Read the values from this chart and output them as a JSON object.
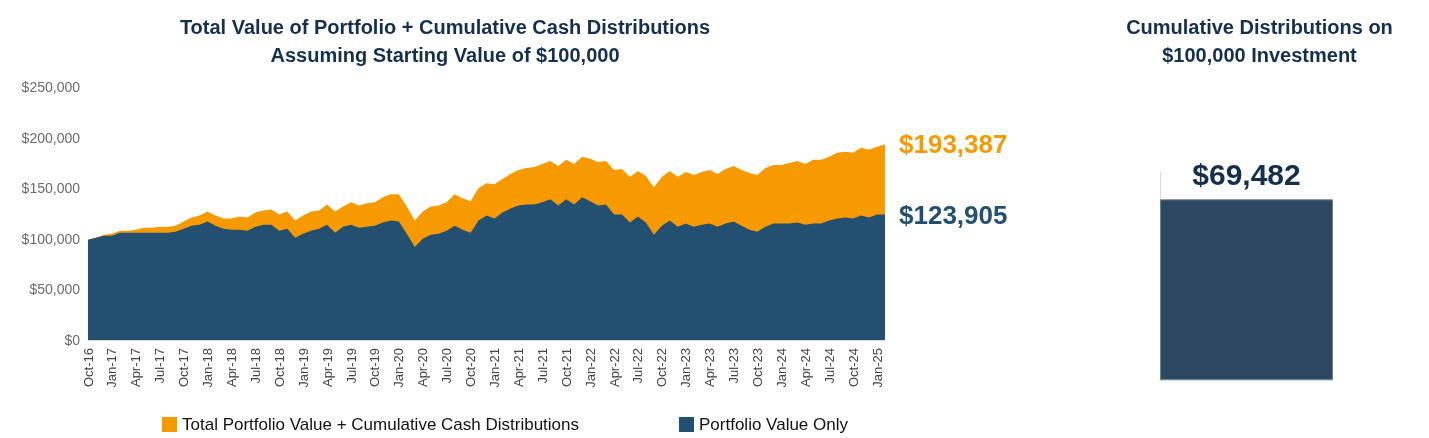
{
  "chart_data": [
    {
      "type": "area",
      "title": "Total Value of Portfolio + Cumulative Cash Distributions\nAssuming Starting Value of $100,000",
      "categories": [
        "Oct-16",
        null,
        null,
        "Jan-17",
        null,
        null,
        "Apr-17",
        null,
        null,
        "Jul-17",
        null,
        null,
        "Oct-17",
        null,
        null,
        "Jan-18",
        null,
        null,
        "Apr-18",
        null,
        null,
        "Jul-18",
        null,
        null,
        "Oct-18",
        null,
        null,
        "Jan-19",
        null,
        null,
        "Apr-19",
        null,
        null,
        "Jul-19",
        null,
        null,
        "Oct-19",
        null,
        null,
        "Jan-20",
        null,
        null,
        "Apr-20",
        null,
        null,
        "Jul-20",
        null,
        null,
        "Oct-20",
        null,
        null,
        "Jan-21",
        null,
        null,
        "Apr-21",
        null,
        null,
        "Jul-21",
        null,
        null,
        "Oct-21",
        null,
        null,
        "Jan-22",
        null,
        null,
        "Apr-22",
        null,
        null,
        "Jul-22",
        null,
        null,
        "Oct-22",
        null,
        null,
        "Jan-23",
        null,
        null,
        "Apr-23",
        null,
        null,
        "Jul-23",
        null,
        null,
        "Oct-23",
        null,
        null,
        "Jan-24",
        null,
        null,
        "Apr-24",
        null,
        null,
        "Jul-24",
        null,
        null,
        "Oct-24",
        null,
        null,
        "Jan-25",
        null
      ],
      "series": [
        {
          "name": "Total Portfolio Value + Cumulative Cash Distributions",
          "color": "#f79a00",
          "values": [
            99000,
            101000,
            104000,
            105000,
            108000,
            108000,
            109000,
            111000,
            111000,
            112000,
            112000,
            113000,
            117000,
            121000,
            123000,
            127000,
            123000,
            120000,
            120000,
            122000,
            121000,
            126000,
            128000,
            129000,
            124000,
            127000,
            118000,
            123000,
            127000,
            128000,
            134000,
            127000,
            132000,
            136000,
            133000,
            135000,
            136000,
            141000,
            144000,
            144000,
            132000,
            118000,
            127000,
            132000,
            133000,
            136000,
            144000,
            140000,
            137000,
            150000,
            155000,
            154000,
            159000,
            164000,
            168000,
            170000,
            171000,
            174000,
            177000,
            172000,
            178000,
            174000,
            181000,
            179000,
            176000,
            177000,
            168000,
            169000,
            161000,
            167000,
            162000,
            151000,
            161000,
            167000,
            161000,
            166000,
            163000,
            166000,
            168000,
            164000,
            169000,
            172000,
            168000,
            165000,
            163000,
            170000,
            173000,
            173000,
            175000,
            177000,
            174000,
            178000,
            178000,
            181000,
            185000,
            186000,
            185000,
            190000,
            188000,
            191000,
            193387
          ],
          "value_labels": [
            null,
            null,
            null,
            null,
            null,
            null,
            null,
            null,
            null,
            null,
            null,
            null,
            null,
            null,
            null,
            null,
            null,
            null,
            null,
            null,
            null,
            null,
            null,
            null,
            null,
            null,
            null,
            null,
            null,
            null,
            null,
            null,
            null,
            null,
            null,
            null,
            null,
            null,
            null,
            null,
            null,
            null,
            null,
            null,
            null,
            null,
            null,
            null,
            null,
            null,
            null,
            null,
            null,
            null,
            null,
            null,
            null,
            null,
            null,
            null,
            null,
            null,
            null,
            null,
            null,
            null,
            null,
            null,
            null,
            null,
            null,
            null,
            null,
            null,
            null,
            null,
            null,
            null,
            null,
            null,
            null,
            null,
            null,
            null,
            null,
            null,
            null,
            null,
            null,
            null,
            null,
            null,
            null,
            null,
            null,
            null,
            null,
            null,
            null,
            null,
            "$193,387"
          ]
        },
        {
          "name": "Portfolio Value Only",
          "color": "#235070",
          "values": [
            99000,
            101000,
            103000,
            103000,
            106000,
            106000,
            106000,
            106000,
            106000,
            106000,
            106000,
            107000,
            110000,
            113000,
            114000,
            117000,
            113000,
            110000,
            109000,
            109000,
            108000,
            112000,
            114000,
            114000,
            108000,
            110000,
            101000,
            105000,
            108000,
            110000,
            114000,
            106000,
            112000,
            114000,
            111000,
            112000,
            113000,
            116000,
            118000,
            117000,
            105000,
            92000,
            100000,
            104000,
            105000,
            108000,
            113000,
            109000,
            106000,
            118000,
            123000,
            120000,
            126000,
            130000,
            133000,
            134000,
            134000,
            136000,
            139000,
            133000,
            139000,
            134000,
            141000,
            137000,
            133000,
            134000,
            124000,
            124000,
            116000,
            122000,
            116000,
            104000,
            113000,
            118000,
            112000,
            115000,
            112000,
            114000,
            115000,
            112000,
            115000,
            117000,
            113000,
            109000,
            107000,
            112000,
            115000,
            115000,
            115000,
            116000,
            114000,
            115000,
            115000,
            118000,
            120000,
            121000,
            120000,
            123000,
            121000,
            124000,
            123905
          ],
          "value_labels": [
            null,
            null,
            null,
            null,
            null,
            null,
            null,
            null,
            null,
            null,
            null,
            null,
            null,
            null,
            null,
            null,
            null,
            null,
            null,
            null,
            null,
            null,
            null,
            null,
            null,
            null,
            null,
            null,
            null,
            null,
            null,
            null,
            null,
            null,
            null,
            null,
            null,
            null,
            null,
            null,
            null,
            null,
            null,
            null,
            null,
            null,
            null,
            null,
            null,
            null,
            null,
            null,
            null,
            null,
            null,
            null,
            null,
            null,
            null,
            null,
            null,
            null,
            null,
            null,
            null,
            null,
            null,
            null,
            null,
            null,
            null,
            null,
            null,
            null,
            null,
            null,
            null,
            null,
            null,
            null,
            null,
            null,
            null,
            null,
            null,
            null,
            null,
            null,
            null,
            null,
            null,
            null,
            null,
            null,
            null,
            null,
            null,
            null,
            null,
            null,
            "$123,905"
          ]
        }
      ],
      "ylim": [
        0,
        250000
      ],
      "yticks": [
        {
          "value": 0,
          "label": "$0"
        },
        {
          "value": 50000,
          "label": "$50,000"
        },
        {
          "value": 100000,
          "label": "$100,000"
        },
        {
          "value": 150000,
          "label": "$150,000"
        },
        {
          "value": 200000,
          "label": "$200,000"
        },
        {
          "value": 250000,
          "label": "$250,000"
        }
      ],
      "marker": "none",
      "legend": "bottom"
    },
    {
      "type": "bar",
      "title": "Cumulative Distributions on\n$100,000 Investment",
      "categories": [
        null
      ],
      "series": [
        {
          "color": "#2e4760",
          "values": [
            69482
          ],
          "value_labels": [
            "$69,482"
          ]
        }
      ],
      "ylim": [
        0,
        80000
      ]
    }
  ]
}
